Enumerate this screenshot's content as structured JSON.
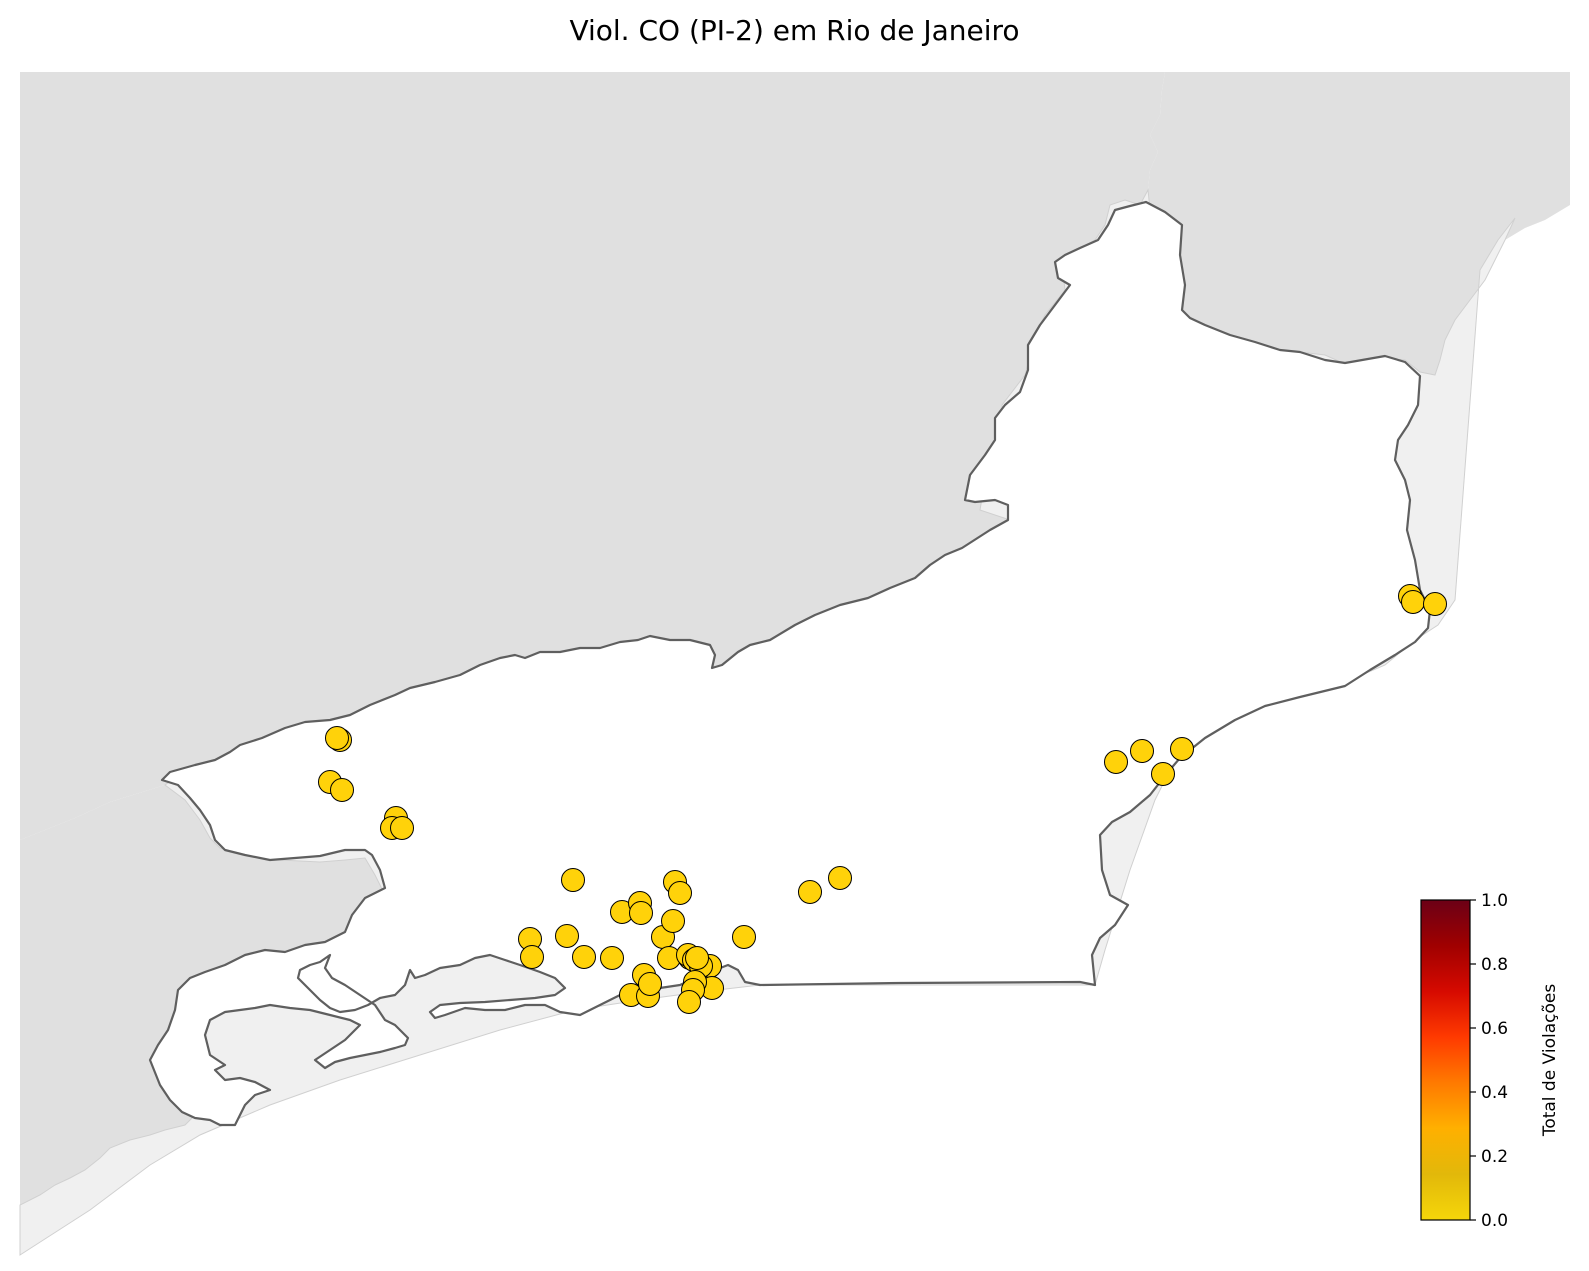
{
  "title": "Viol. CO (PI-2) em Rio de Janeiro",
  "colors": {
    "neighbor_fill": "#e0e0e0",
    "ocean_shape_fill": "#f0f0f0",
    "state_fill": "#ffffff",
    "state_stroke": "#5f5f5f",
    "marker_fill": "#ffd20a",
    "marker_stroke": "#000000"
  },
  "colorbar": {
    "label": "Total de Violações",
    "ticks": [
      "0.0",
      "0.2",
      "0.4",
      "0.6",
      "0.8",
      "1.0"
    ],
    "range": [
      0,
      1
    ],
    "colormap_stops": [
      "#f5d60a",
      "#e2b80a",
      "#ffb000",
      "#ff7a00",
      "#ff3a00",
      "#d60a00",
      "#a00000",
      "#6b0016"
    ]
  },
  "legend_position": "bottom-right",
  "violations": [
    {
      "value": 0
    },
    {
      "value": 0
    },
    {
      "value": 0
    },
    {
      "value": 0
    },
    {
      "value": 0
    },
    {
      "value": 0
    },
    {
      "value": 0
    },
    {
      "value": 0
    },
    {
      "value": 0
    },
    {
      "value": 0
    },
    {
      "value": 0
    },
    {
      "value": 0
    },
    {
      "value": 0
    },
    {
      "value": 0
    },
    {
      "value": 0
    },
    {
      "value": 0
    },
    {
      "value": 0
    },
    {
      "value": 0
    },
    {
      "value": 0
    },
    {
      "value": 0
    },
    {
      "value": 0
    },
    {
      "value": 0
    },
    {
      "value": 0
    },
    {
      "value": 0
    },
    {
      "value": 0
    },
    {
      "value": 0
    },
    {
      "value": 0
    },
    {
      "value": 0
    },
    {
      "value": 0
    },
    {
      "value": 0
    },
    {
      "value": 0
    },
    {
      "value": 0
    },
    {
      "value": 0
    },
    {
      "value": 0
    },
    {
      "value": 0
    },
    {
      "value": 0
    },
    {
      "value": 0
    },
    {
      "value": 0
    },
    {
      "value": 0
    },
    {
      "value": 0
    },
    {
      "value": 0
    },
    {
      "value": 0
    },
    {
      "value": 0
    },
    {
      "value": 0
    },
    {
      "value": 0
    }
  ]
}
